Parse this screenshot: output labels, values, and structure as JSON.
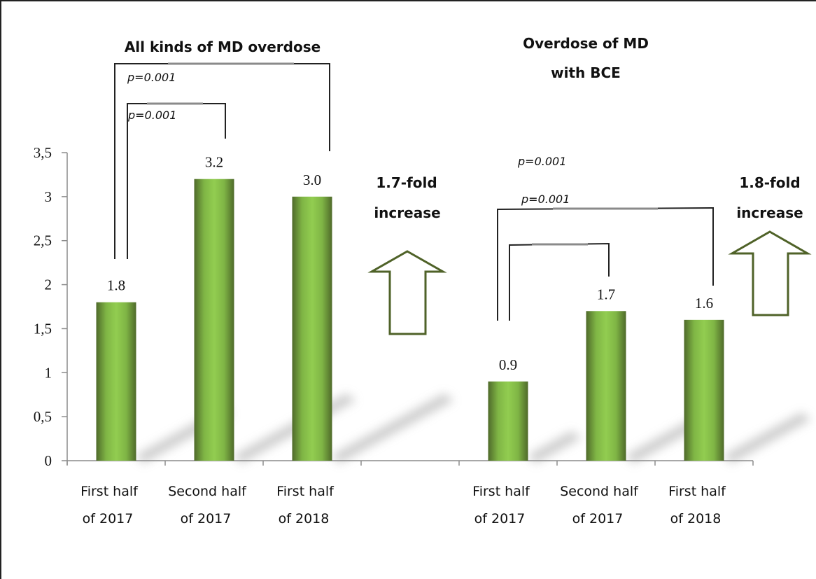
{
  "chart_data": {
    "type": "bar",
    "ylim": [
      0,
      3.5
    ],
    "yticks": [
      0,
      0.5,
      1,
      1.5,
      2,
      2.5,
      3,
      3.5
    ],
    "ytick_labels": [
      "0",
      "0,5",
      "1",
      "1,5",
      "2",
      "2,5",
      "3",
      "3,5"
    ],
    "grid": false,
    "legend": "none",
    "xlabel": "",
    "ylabel": "",
    "panels": [
      {
        "title_lines": [
          "All kinds of MD overdose"
        ],
        "categories": [
          [
            "First half",
            "of 2017"
          ],
          [
            "Second half",
            "of 2017"
          ],
          [
            "First half",
            "of 2018"
          ]
        ],
        "values": [
          1.8,
          3.2,
          3.0
        ],
        "value_labels": [
          "1.8",
          "3.2",
          "3.0"
        ],
        "comparisons": [
          {
            "from": 0,
            "to": 2,
            "label": "p=0.001"
          },
          {
            "from": 0,
            "to": 1,
            "label": "p=0.001"
          }
        ],
        "fold_change": [
          "1.7-fold",
          "increase"
        ]
      },
      {
        "title_lines": [
          "Overdose of MD",
          "with BCE"
        ],
        "categories": [
          [
            "First half",
            "of 2017"
          ],
          [
            "Second half",
            "of 2017"
          ],
          [
            "First half",
            "of 2018"
          ]
        ],
        "values": [
          0.9,
          1.7,
          1.6
        ],
        "value_labels": [
          "0.9",
          "1.7",
          "1.6"
        ],
        "comparisons": [
          {
            "from": 0,
            "to": 2,
            "label": "p=0.001"
          },
          {
            "from": 0,
            "to": 1,
            "label": "p=0.001"
          }
        ],
        "fold_change": [
          "1.8-fold",
          "increase"
        ]
      }
    ],
    "colors": {
      "bar_light": "#92cd50",
      "bar_dark": "#4f6a2a",
      "arrow": "#4f6228",
      "axis": "#8c8c8c"
    }
  }
}
